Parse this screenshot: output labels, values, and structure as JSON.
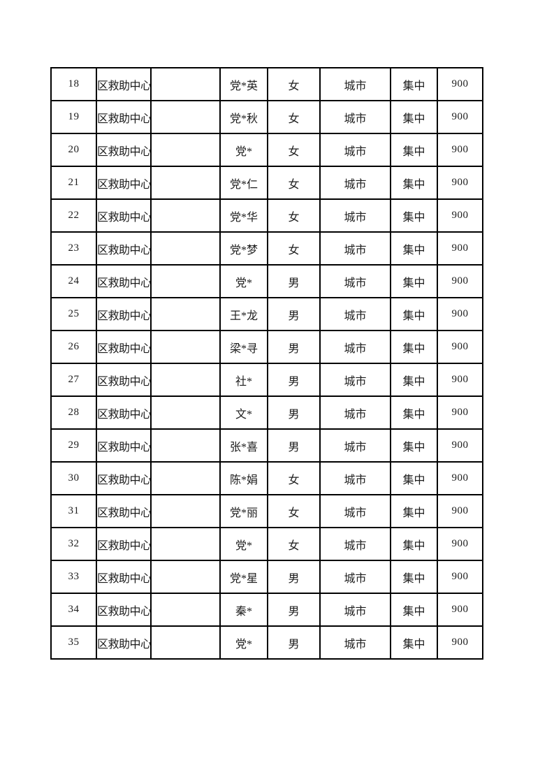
{
  "page": {
    "background_color": "#ffffff",
    "text_color": "#1c1c1c",
    "border_color": "#000000"
  },
  "table": {
    "columns": [
      {
        "key": "seq"
      },
      {
        "key": "org"
      },
      {
        "key": "blank"
      },
      {
        "key": "name"
      },
      {
        "key": "gender"
      },
      {
        "key": "region"
      },
      {
        "key": "mode"
      },
      {
        "key": "amount"
      }
    ],
    "rows": [
      {
        "seq": "18",
        "org": "区救助中心",
        "blank": "",
        "name": "党*英",
        "gender": "女",
        "region": "城市",
        "mode": "集中",
        "amount": "900"
      },
      {
        "seq": "19",
        "org": "区救助中心",
        "blank": "",
        "name": "党*秋",
        "gender": "女",
        "region": "城市",
        "mode": "集中",
        "amount": "900"
      },
      {
        "seq": "20",
        "org": "区救助中心",
        "blank": "",
        "name": "党*",
        "gender": "女",
        "region": "城市",
        "mode": "集中",
        "amount": "900"
      },
      {
        "seq": "21",
        "org": "区救助中心",
        "blank": "",
        "name": "党*仁",
        "gender": "女",
        "region": "城市",
        "mode": "集中",
        "amount": "900"
      },
      {
        "seq": "22",
        "org": "区救助中心",
        "blank": "",
        "name": "党*华",
        "gender": "女",
        "region": "城市",
        "mode": "集中",
        "amount": "900"
      },
      {
        "seq": "23",
        "org": "区救助中心",
        "blank": "",
        "name": "党*梦",
        "gender": "女",
        "region": "城市",
        "mode": "集中",
        "amount": "900"
      },
      {
        "seq": "24",
        "org": "区救助中心",
        "blank": "",
        "name": "党*",
        "gender": "男",
        "region": "城市",
        "mode": "集中",
        "amount": "900"
      },
      {
        "seq": "25",
        "org": "区救助中心",
        "blank": "",
        "name": "王*龙",
        "gender": "男",
        "region": "城市",
        "mode": "集中",
        "amount": "900"
      },
      {
        "seq": "26",
        "org": "区救助中心",
        "blank": "",
        "name": "梁*寻",
        "gender": "男",
        "region": "城市",
        "mode": "集中",
        "amount": "900"
      },
      {
        "seq": "27",
        "org": "区救助中心",
        "blank": "",
        "name": "社*",
        "gender": "男",
        "region": "城市",
        "mode": "集中",
        "amount": "900"
      },
      {
        "seq": "28",
        "org": "区救助中心",
        "blank": "",
        "name": "文*",
        "gender": "男",
        "region": "城市",
        "mode": "集中",
        "amount": "900"
      },
      {
        "seq": "29",
        "org": "区救助中心",
        "blank": "",
        "name": "张*喜",
        "gender": "男",
        "region": "城市",
        "mode": "集中",
        "amount": "900"
      },
      {
        "seq": "30",
        "org": "区救助中心",
        "blank": "",
        "name": "陈*娟",
        "gender": "女",
        "region": "城市",
        "mode": "集中",
        "amount": "900"
      },
      {
        "seq": "31",
        "org": "区救助中心",
        "blank": "",
        "name": "党*丽",
        "gender": "女",
        "region": "城市",
        "mode": "集中",
        "amount": "900"
      },
      {
        "seq": "32",
        "org": "区救助中心",
        "blank": "",
        "name": "党*",
        "gender": "女",
        "region": "城市",
        "mode": "集中",
        "amount": "900"
      },
      {
        "seq": "33",
        "org": "区救助中心",
        "blank": "",
        "name": "党*星",
        "gender": "男",
        "region": "城市",
        "mode": "集中",
        "amount": "900"
      },
      {
        "seq": "34",
        "org": "区救助中心",
        "blank": "",
        "name": "秦*",
        "gender": "男",
        "region": "城市",
        "mode": "集中",
        "amount": "900"
      },
      {
        "seq": "35",
        "org": "区救助中心",
        "blank": "",
        "name": "党*",
        "gender": "男",
        "region": "城市",
        "mode": "集中",
        "amount": "900"
      }
    ]
  }
}
